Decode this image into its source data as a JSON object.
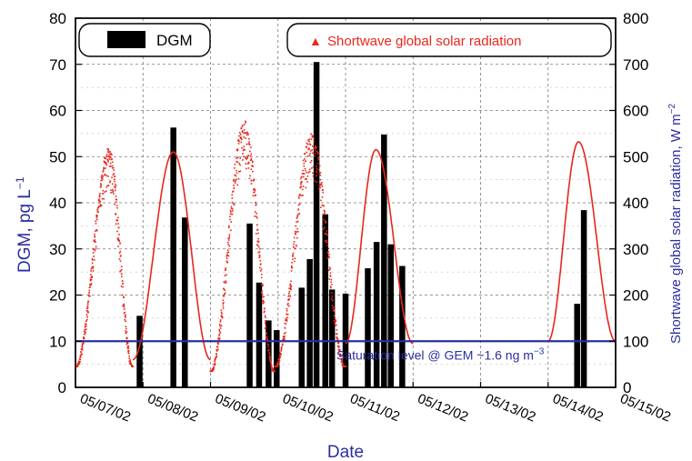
{
  "chart_data": {
    "type": "bar+scatter",
    "xlabel": "Date",
    "ylabel_left": "DGM, pg L",
    "ylabel_left_unit_sup": "−1",
    "ylabel_right": "Shortwave global solar radiation, W m",
    "ylabel_right_unit_sup": "−2",
    "ylim_left": [
      0,
      80
    ],
    "ylim_right": [
      0,
      800
    ],
    "x_ticks": [
      "05/07/02",
      "05/08/02",
      "05/09/02",
      "05/10/02",
      "05/11/02",
      "05/12/02",
      "05/13/02",
      "05/14/02",
      "05/15/02"
    ],
    "y_ticks_left": [
      "0",
      "10",
      "20",
      "30",
      "40",
      "50",
      "60",
      "70",
      "80"
    ],
    "y_ticks_right": [
      "0",
      "100",
      "200",
      "300",
      "400",
      "500",
      "600",
      "700",
      "800"
    ],
    "grid": true,
    "legend": {
      "dgm_label": "DGM",
      "solar_label": "Shortwave global solar radiation",
      "solar_marker": "▲"
    },
    "series": [
      {
        "name": "DGM",
        "kind": "bar",
        "axis": "left",
        "color": "#000000",
        "points": [
          {
            "x": 0.95,
            "y": 15.5
          },
          {
            "x": 1.45,
            "y": 56.3
          },
          {
            "x": 1.62,
            "y": 36.8
          },
          {
            "x": 2.58,
            "y": 35.5
          },
          {
            "x": 2.72,
            "y": 22.7
          },
          {
            "x": 2.86,
            "y": 14.5
          },
          {
            "x": 2.98,
            "y": 12.4
          },
          {
            "x": 3.35,
            "y": 21.6
          },
          {
            "x": 3.47,
            "y": 27.8
          },
          {
            "x": 3.57,
            "y": 70.5
          },
          {
            "x": 3.7,
            "y": 37.5
          },
          {
            "x": 3.8,
            "y": 21.2
          },
          {
            "x": 4.0,
            "y": 20.3
          },
          {
            "x": 4.33,
            "y": 25.8
          },
          {
            "x": 4.46,
            "y": 31.5
          },
          {
            "x": 4.57,
            "y": 54.8
          },
          {
            "x": 4.67,
            "y": 31.0
          },
          {
            "x": 4.84,
            "y": 26.3
          },
          {
            "x": 7.43,
            "y": 18.1
          },
          {
            "x": 7.53,
            "y": 38.4
          }
        ]
      },
      {
        "name": "Shortwave global solar radiation",
        "kind": "scatter-dense",
        "axis": "right",
        "color": "#e8271b",
        "days": [
          {
            "start": 0.0,
            "peak_x": 0.5,
            "peak_y": 520,
            "end": 0.85,
            "min": 45,
            "noisy": true
          },
          {
            "start": 0.85,
            "peak_x": 1.45,
            "peak_y": 510,
            "end": 2.0,
            "min": 60,
            "noisy": false
          },
          {
            "start": 2.0,
            "peak_x": 2.5,
            "peak_y": 580,
            "end": 2.95,
            "min": 35,
            "noisy": true
          },
          {
            "start": 2.95,
            "peak_x": 3.5,
            "peak_y": 550,
            "end": 4.0,
            "min": 45,
            "noisy": true
          },
          {
            "start": 4.0,
            "peak_x": 4.45,
            "peak_y": 515,
            "end": 5.0,
            "min": 95,
            "noisy": false
          },
          {
            "start": 7.0,
            "peak_x": 7.45,
            "peak_y": 532,
            "end": 8.0,
            "min": 100,
            "noisy": false
          }
        ]
      }
    ],
    "annotations": {
      "saturation_level_value": 10,
      "saturation_text": "Saturation level @ GEM ~1.6 ng m",
      "saturation_text_sup": "−3",
      "saturation_color": "#2a2fa0"
    }
  }
}
